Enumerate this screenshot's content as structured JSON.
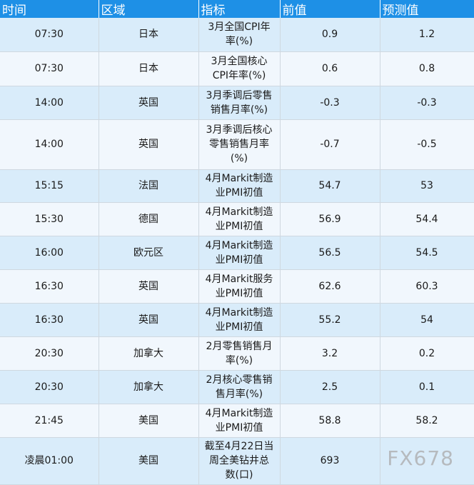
{
  "headers": [
    "时间",
    "区域",
    "指标",
    "前值",
    "预测值"
  ],
  "rows": [
    {
      "time": "07:30",
      "region": "日本",
      "indicator_lines": [
        "3月全国CPI年",
        "率(%)"
      ],
      "prev": "0.9",
      "forecast": "1.2"
    },
    {
      "time": "07:30",
      "region": "日本",
      "indicator_lines": [
        "3月全国核心",
        "CPI年率(%)"
      ],
      "prev": "0.6",
      "forecast": "0.8"
    },
    {
      "time": "14:00",
      "region": "英国",
      "indicator_lines": [
        "3月季调后零售",
        "销售月率(%)"
      ],
      "prev": "-0.3",
      "forecast": "-0.3"
    },
    {
      "time": "14:00",
      "region": "英国",
      "indicator_lines": [
        "3月季调后核心",
        "零售销售月率",
        "(%)"
      ],
      "prev": "-0.7",
      "forecast": "-0.5"
    },
    {
      "time": "15:15",
      "region": "法国",
      "indicator_lines": [
        "4月Markit制造",
        "业PMI初值"
      ],
      "prev": "54.7",
      "forecast": "53"
    },
    {
      "time": "15:30",
      "region": "德国",
      "indicator_lines": [
        "4月Markit制造",
        "业PMI初值"
      ],
      "prev": "56.9",
      "forecast": "54.4"
    },
    {
      "time": "16:00",
      "region": "欧元区",
      "indicator_lines": [
        "4月Markit制造",
        "业PMI初值"
      ],
      "prev": "56.5",
      "forecast": "54.5"
    },
    {
      "time": "16:30",
      "region": "英国",
      "indicator_lines": [
        "4月Markit服务",
        "业PMI初值"
      ],
      "prev": "62.6",
      "forecast": "60.3"
    },
    {
      "time": "16:30",
      "region": "英国",
      "indicator_lines": [
        "4月Markit制造",
        "业PMI初值"
      ],
      "prev": "55.2",
      "forecast": "54"
    },
    {
      "time": "20:30",
      "region": "加拿大",
      "indicator_lines": [
        "2月零售销售月",
        "率(%)"
      ],
      "prev": "3.2",
      "forecast": "0.2"
    },
    {
      "time": "20:30",
      "region": "加拿大",
      "indicator_lines": [
        "2月核心零售销",
        "售月率(%)"
      ],
      "prev": "2.5",
      "forecast": "0.1"
    },
    {
      "time": "21:45",
      "region": "美国",
      "indicator_lines": [
        "4月Markit制造",
        "业PMI初值"
      ],
      "prev": "58.8",
      "forecast": "58.2"
    },
    {
      "time": "凌晨01:00",
      "region": "美国",
      "indicator_lines": [
        "截至4月22日当",
        "周全美钻井总",
        "数(口)"
      ],
      "prev": "693",
      "forecast": ""
    }
  ],
  "watermark": "FX678",
  "colors": {
    "header_bg": "#1e90e6",
    "row_odd": "#d9ecfa",
    "row_even": "#f1f7fd"
  }
}
